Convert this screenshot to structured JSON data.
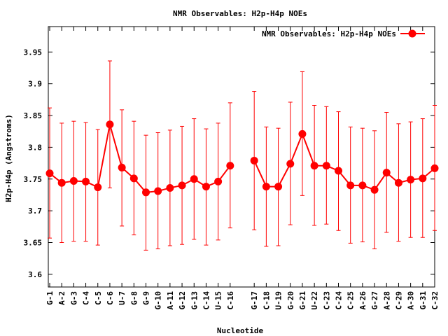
{
  "chart_data": {
    "type": "line",
    "title": "NMR Observables: H2p-H4p NOEs",
    "xlabel": "Nucleotide",
    "ylabel": "H2p-H4p (Angstroms)",
    "ylim": [
      3.58,
      3.99
    ],
    "yticks": [
      "3.6",
      "3.65",
      "3.7",
      "3.75",
      "3.8",
      "3.85",
      "3.9",
      "3.95"
    ],
    "legend": {
      "label": "NMR Observables: H2p-H4p NOEs",
      "position": "top-right"
    },
    "grid": false,
    "color": "#ff0000",
    "series": [
      {
        "name": "NMR Observables: H2p-H4p NOEs",
        "segments": [
          {
            "categories": [
              "G-1",
              "A-2",
              "G-3",
              "C-4",
              "C-5",
              "C-6",
              "U-7",
              "G-8",
              "G-9",
              "G-10",
              "A-11",
              "G-12",
              "G-13",
              "C-14",
              "U-15",
              "C-16"
            ],
            "values": [
              3.759,
              3.744,
              3.747,
              3.746,
              3.737,
              3.836,
              3.768,
              3.751,
              3.729,
              3.731,
              3.736,
              3.74,
              3.75,
              3.738,
              3.746,
              3.771
            ],
            "error_high": [
              3.862,
              3.838,
              3.841,
              3.839,
              3.828,
              3.936,
              3.859,
              3.841,
              3.819,
              3.823,
              3.827,
              3.833,
              3.845,
              3.829,
              3.838,
              3.87
            ],
            "error_low": [
              3.657,
              3.65,
              3.652,
              3.652,
              3.646,
              3.736,
              3.676,
              3.662,
              3.638,
              3.64,
              3.645,
              3.647,
              3.655,
              3.646,
              3.654,
              3.673
            ]
          },
          {
            "categories": [
              "G-17",
              "C-18",
              "U-19",
              "G-20",
              "G-21",
              "U-22",
              "C-23",
              "C-24",
              "C-25",
              "A-26",
              "G-27",
              "A-28",
              "C-29",
              "A-30",
              "G-31",
              "C-32"
            ],
            "values": [
              3.779,
              3.738,
              3.738,
              3.774,
              3.821,
              3.771,
              3.771,
              3.763,
              3.74,
              3.74,
              3.733,
              3.76,
              3.744,
              3.749,
              3.751,
              3.767
            ],
            "error_high": [
              3.888,
              3.832,
              3.83,
              3.871,
              3.919,
              3.866,
              3.864,
              3.856,
              3.832,
              3.83,
              3.826,
              3.855,
              3.837,
              3.84,
              3.845,
              3.866
            ],
            "error_low": [
              3.67,
              3.644,
              3.645,
              3.678,
              3.724,
              3.677,
              3.679,
              3.669,
              3.649,
              3.651,
              3.64,
              3.666,
              3.652,
              3.658,
              3.658,
              3.669
            ]
          }
        ]
      }
    ]
  }
}
